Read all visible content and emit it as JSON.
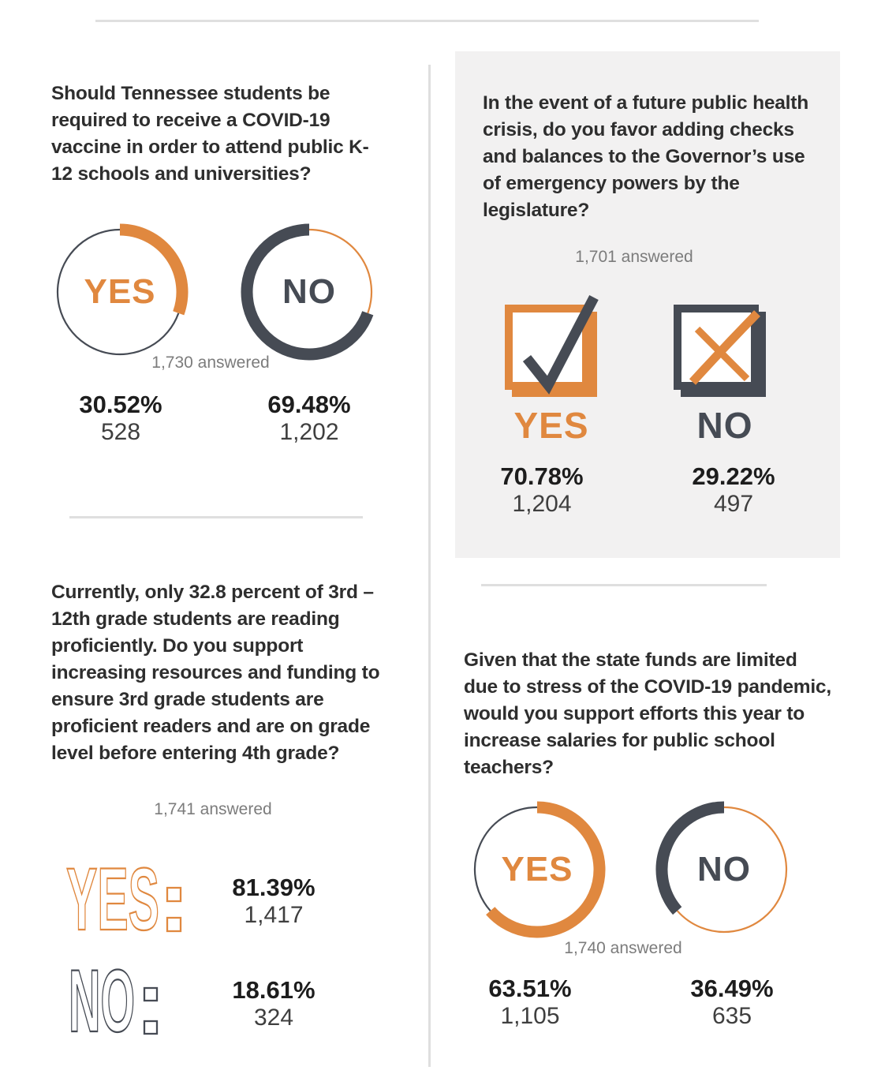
{
  "colors": {
    "orange": "#E0883F",
    "dark": "#464B54",
    "panel_bg": "#F2F1F1",
    "divider": "#DFDFDF",
    "text_dark": "#2E2E2E",
    "muted": "#7C7C7C"
  },
  "panels": [
    {
      "id": "vaccine-mandate",
      "style": "donut",
      "question": "Should Tennessee students be required to receive a COVID-19 vaccine in order to attend public K-12 schools and universities?",
      "answered": "1,730 answered",
      "yes": {
        "label": "YES",
        "pct": "30.52%",
        "pct_value": 30.52,
        "count": "528"
      },
      "no": {
        "label": "NO",
        "pct": "69.48%",
        "pct_value": 69.48,
        "count": "1,202"
      }
    },
    {
      "id": "emergency-powers",
      "style": "checkbox",
      "question": "In the event of a future public health crisis, do you favor adding checks and balances to the Governor’s use of emergency powers by the legislature?",
      "answered": "1,701 answered",
      "yes": {
        "label": "YES",
        "pct": "70.78%",
        "count": "1,204"
      },
      "no": {
        "label": "NO",
        "pct": "29.22%",
        "count": "497"
      }
    },
    {
      "id": "reading-proficiency",
      "style": "outline-words",
      "question": "Currently, only 32.8 percent of 3rd – 12th grade students are reading proficiently. Do you support increasing resources and funding to ensure 3rd grade students are proficient readers and are on grade level before entering 4th grade?",
      "answered": "1,741 answered",
      "yes": {
        "label": "YES:",
        "letters": "YES",
        "pct": "81.39%",
        "count": "1,417"
      },
      "no": {
        "label": "NO:",
        "letters": "NO",
        "pct": "18.61%",
        "count": "324"
      }
    },
    {
      "id": "teacher-salaries",
      "style": "donut",
      "question": "Given that the state funds are limited due to stress of the COVID-19 pandemic, would you support efforts this year to increase salaries for public school teachers?",
      "answered": "1,740 answered",
      "yes": {
        "label": "YES",
        "pct": "63.51%",
        "pct_value": 63.51,
        "count": "1,105"
      },
      "no": {
        "label": "NO",
        "pct": "36.49%",
        "pct_value": 36.49,
        "count": "635"
      }
    }
  ],
  "chart_data": [
    {
      "type": "pie",
      "title": "Should Tennessee students be required to receive a COVID-19 vaccine in order to attend public K-12 schools and universities?",
      "categories": [
        "YES",
        "NO"
      ],
      "values": [
        30.52,
        69.48
      ],
      "counts": [
        528,
        1202
      ],
      "answered": 1730,
      "units": "percent",
      "colors": [
        "#E0883F",
        "#464B54"
      ]
    },
    {
      "type": "pie",
      "title": "In the event of a future public health crisis, do you favor adding checks and balances to the Governor’s use of emergency powers by the legislature?",
      "categories": [
        "YES",
        "NO"
      ],
      "values": [
        70.78,
        29.22
      ],
      "counts": [
        1204,
        497
      ],
      "answered": 1701,
      "units": "percent",
      "colors": [
        "#E0883F",
        "#464B54"
      ]
    },
    {
      "type": "pie",
      "title": "Currently, only 32.8 percent of 3rd – 12th grade students are reading proficiently. Do you support increasing resources and funding to ensure 3rd grade students are proficient readers and are on grade level before entering 4th grade?",
      "categories": [
        "YES",
        "NO"
      ],
      "values": [
        81.39,
        18.61
      ],
      "counts": [
        1417,
        324
      ],
      "answered": 1741,
      "units": "percent",
      "colors": [
        "#E0883F",
        "#464B54"
      ]
    },
    {
      "type": "pie",
      "title": "Given that the state funds are limited due to stress of the COVID-19 pandemic, would you support efforts this year to increase salaries for public school teachers?",
      "categories": [
        "YES",
        "NO"
      ],
      "values": [
        63.51,
        36.49
      ],
      "counts": [
        1105,
        635
      ],
      "answered": 1740,
      "units": "percent",
      "colors": [
        "#E0883F",
        "#464B54"
      ]
    }
  ]
}
